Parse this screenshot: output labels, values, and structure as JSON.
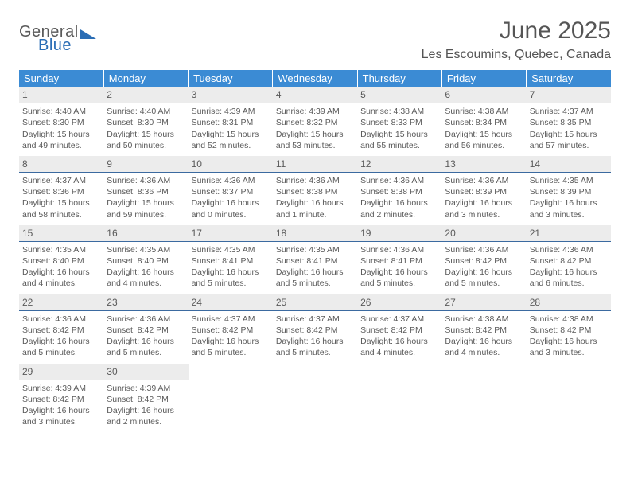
{
  "logo": {
    "text1": "General",
    "text2": "Blue"
  },
  "title": "June 2025",
  "location": "Les Escoumins, Quebec, Canada",
  "colors": {
    "header_bg": "#3b8bd4",
    "header_text": "#ffffff",
    "daynum_bg": "#ececec",
    "daynum_border": "#3b6aa0",
    "body_text": "#5a5a5a",
    "logo_blue": "#2a6db5"
  },
  "weekdays": [
    "Sunday",
    "Monday",
    "Tuesday",
    "Wednesday",
    "Thursday",
    "Friday",
    "Saturday"
  ],
  "grid": [
    [
      {
        "n": "1",
        "sr": "4:40 AM",
        "ss": "8:30 PM",
        "dl": "15 hours and 49 minutes."
      },
      {
        "n": "2",
        "sr": "4:40 AM",
        "ss": "8:30 PM",
        "dl": "15 hours and 50 minutes."
      },
      {
        "n": "3",
        "sr": "4:39 AM",
        "ss": "8:31 PM",
        "dl": "15 hours and 52 minutes."
      },
      {
        "n": "4",
        "sr": "4:39 AM",
        "ss": "8:32 PM",
        "dl": "15 hours and 53 minutes."
      },
      {
        "n": "5",
        "sr": "4:38 AM",
        "ss": "8:33 PM",
        "dl": "15 hours and 55 minutes."
      },
      {
        "n": "6",
        "sr": "4:38 AM",
        "ss": "8:34 PM",
        "dl": "15 hours and 56 minutes."
      },
      {
        "n": "7",
        "sr": "4:37 AM",
        "ss": "8:35 PM",
        "dl": "15 hours and 57 minutes."
      }
    ],
    [
      {
        "n": "8",
        "sr": "4:37 AM",
        "ss": "8:36 PM",
        "dl": "15 hours and 58 minutes."
      },
      {
        "n": "9",
        "sr": "4:36 AM",
        "ss": "8:36 PM",
        "dl": "15 hours and 59 minutes."
      },
      {
        "n": "10",
        "sr": "4:36 AM",
        "ss": "8:37 PM",
        "dl": "16 hours and 0 minutes."
      },
      {
        "n": "11",
        "sr": "4:36 AM",
        "ss": "8:38 PM",
        "dl": "16 hours and 1 minute."
      },
      {
        "n": "12",
        "sr": "4:36 AM",
        "ss": "8:38 PM",
        "dl": "16 hours and 2 minutes."
      },
      {
        "n": "13",
        "sr": "4:36 AM",
        "ss": "8:39 PM",
        "dl": "16 hours and 3 minutes."
      },
      {
        "n": "14",
        "sr": "4:35 AM",
        "ss": "8:39 PM",
        "dl": "16 hours and 3 minutes."
      }
    ],
    [
      {
        "n": "15",
        "sr": "4:35 AM",
        "ss": "8:40 PM",
        "dl": "16 hours and 4 minutes."
      },
      {
        "n": "16",
        "sr": "4:35 AM",
        "ss": "8:40 PM",
        "dl": "16 hours and 4 minutes."
      },
      {
        "n": "17",
        "sr": "4:35 AM",
        "ss": "8:41 PM",
        "dl": "16 hours and 5 minutes."
      },
      {
        "n": "18",
        "sr": "4:35 AM",
        "ss": "8:41 PM",
        "dl": "16 hours and 5 minutes."
      },
      {
        "n": "19",
        "sr": "4:36 AM",
        "ss": "8:41 PM",
        "dl": "16 hours and 5 minutes."
      },
      {
        "n": "20",
        "sr": "4:36 AM",
        "ss": "8:42 PM",
        "dl": "16 hours and 5 minutes."
      },
      {
        "n": "21",
        "sr": "4:36 AM",
        "ss": "8:42 PM",
        "dl": "16 hours and 6 minutes."
      }
    ],
    [
      {
        "n": "22",
        "sr": "4:36 AM",
        "ss": "8:42 PM",
        "dl": "16 hours and 5 minutes."
      },
      {
        "n": "23",
        "sr": "4:36 AM",
        "ss": "8:42 PM",
        "dl": "16 hours and 5 minutes."
      },
      {
        "n": "24",
        "sr": "4:37 AM",
        "ss": "8:42 PM",
        "dl": "16 hours and 5 minutes."
      },
      {
        "n": "25",
        "sr": "4:37 AM",
        "ss": "8:42 PM",
        "dl": "16 hours and 5 minutes."
      },
      {
        "n": "26",
        "sr": "4:37 AM",
        "ss": "8:42 PM",
        "dl": "16 hours and 4 minutes."
      },
      {
        "n": "27",
        "sr": "4:38 AM",
        "ss": "8:42 PM",
        "dl": "16 hours and 4 minutes."
      },
      {
        "n": "28",
        "sr": "4:38 AM",
        "ss": "8:42 PM",
        "dl": "16 hours and 3 minutes."
      }
    ],
    [
      {
        "n": "29",
        "sr": "4:39 AM",
        "ss": "8:42 PM",
        "dl": "16 hours and 3 minutes."
      },
      {
        "n": "30",
        "sr": "4:39 AM",
        "ss": "8:42 PM",
        "dl": "16 hours and 2 minutes."
      },
      null,
      null,
      null,
      null,
      null
    ]
  ],
  "labels": {
    "sunrise": "Sunrise:",
    "sunset": "Sunset:",
    "daylight": "Daylight:"
  }
}
